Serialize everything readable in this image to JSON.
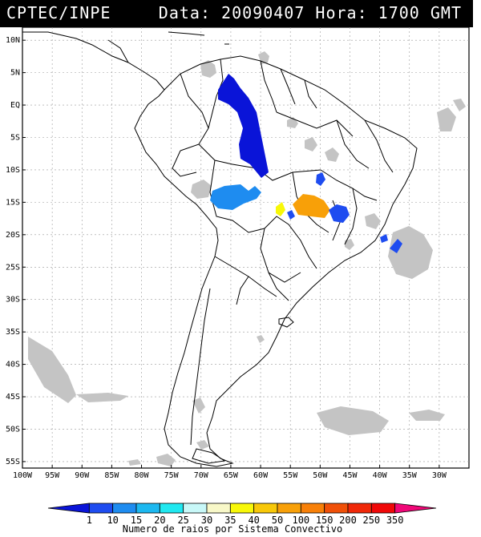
{
  "header": {
    "org": "CPTEC/INPE",
    "stamp": "Data: 20090407 Hora: 1700 GMT"
  },
  "map": {
    "lon_range": [
      -100,
      -25
    ],
    "lat_range": [
      -56,
      12
    ],
    "lat_ticks": [
      "10N",
      "5N",
      "EQ",
      "5S",
      "10S",
      "15S",
      "20S",
      "25S",
      "30S",
      "35S",
      "40S",
      "45S",
      "50S",
      "55S"
    ],
    "lon_ticks": [
      "100W",
      "95W",
      "90W",
      "85W",
      "80W",
      "75W",
      "70W",
      "65W",
      "60W",
      "55W",
      "50W",
      "45W",
      "40W",
      "35W",
      "30W"
    ],
    "grid": true
  },
  "colorbar": {
    "labels": [
      "1",
      "10",
      "15",
      "20",
      "25",
      "30",
      "35",
      "40",
      "50",
      "100",
      "150",
      "200",
      "250",
      "350"
    ],
    "colors": [
      "#0a14d8",
      "#1e4cf0",
      "#1e8cf0",
      "#1cb8f0",
      "#20e8f0",
      "#c8f8f8",
      "#f8f8c8",
      "#f8f808",
      "#f8c808",
      "#f8a008",
      "#f88008",
      "#f05008",
      "#f02808",
      "#f00808",
      "#f00878"
    ],
    "title": "Numero de raios por Sistema Convectivo"
  },
  "systems": [
    {
      "name": "amazon-north",
      "color": "#0a14d8"
    },
    {
      "name": "bolivia",
      "color": "#1e8cf0"
    },
    {
      "name": "mato-grosso",
      "color": "#f8a008"
    },
    {
      "name": "mato-grosso-yellow",
      "color": "#f8f808"
    },
    {
      "name": "minas",
      "color": "#1e4cf0"
    },
    {
      "name": "goias",
      "color": "#1e4cf0"
    },
    {
      "name": "atlantic",
      "color": "#1e4cf0"
    }
  ]
}
